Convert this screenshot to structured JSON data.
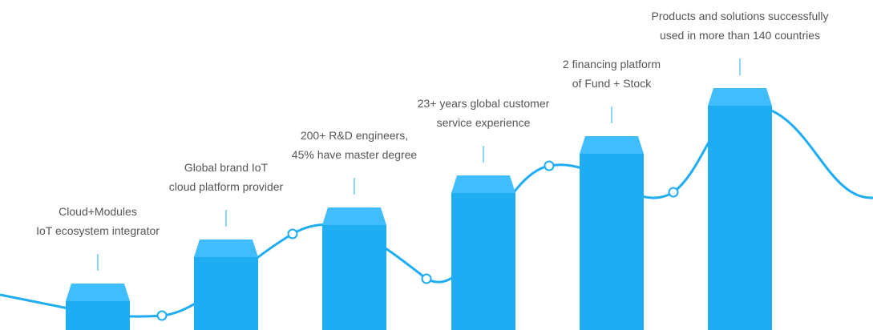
{
  "colors": {
    "bar_body": "#1eadf2",
    "bar_cap": "#40bdfc",
    "curve": "#1eadf2",
    "text": "#555555"
  },
  "milestones": [
    {
      "line1": "Cloud+Modules",
      "line2": "IoT ecosystem integrator"
    },
    {
      "line1": "Global brand IoT",
      "line2": "cloud platform provider"
    },
    {
      "line1": "200+ R&D engineers,",
      "line2": "45% have master degree"
    },
    {
      "line1": "23+ years global customer",
      "line2": "service experience"
    },
    {
      "line1": "2 financing platform",
      "line2": "of Fund + Stock"
    },
    {
      "line1": "Products and solutions successfully",
      "line2": "used in more than 140 countries"
    }
  ]
}
